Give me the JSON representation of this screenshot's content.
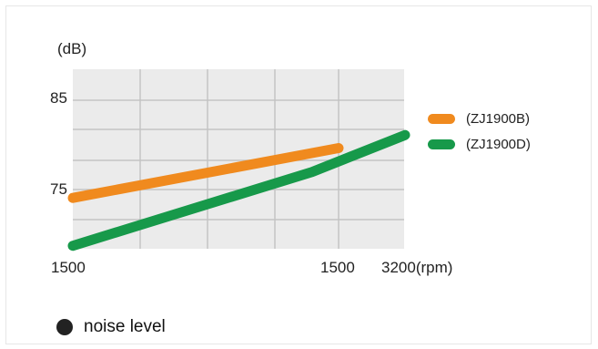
{
  "chart_data": {
    "type": "line",
    "ylabel": "(dB)",
    "y_ticks": [
      75,
      85
    ],
    "ylim": [
      70,
      88
    ],
    "x_tick_labels": [
      "1500",
      "1500",
      "3200(rpm)"
    ],
    "series": [
      {
        "name": "(ZJ1900B)",
        "color": "#f08a1e",
        "points": [
          [
            0,
            75.1
          ],
          [
            1,
            80.1
          ]
        ]
      },
      {
        "name": "(ZJ1900D)",
        "color": "#17994a",
        "points": [
          [
            0,
            70.3
          ],
          [
            0.9,
            77.7
          ],
          [
            1.25,
            81.4
          ]
        ]
      }
    ],
    "grid": true
  },
  "footer": {
    "label": "noise level"
  }
}
